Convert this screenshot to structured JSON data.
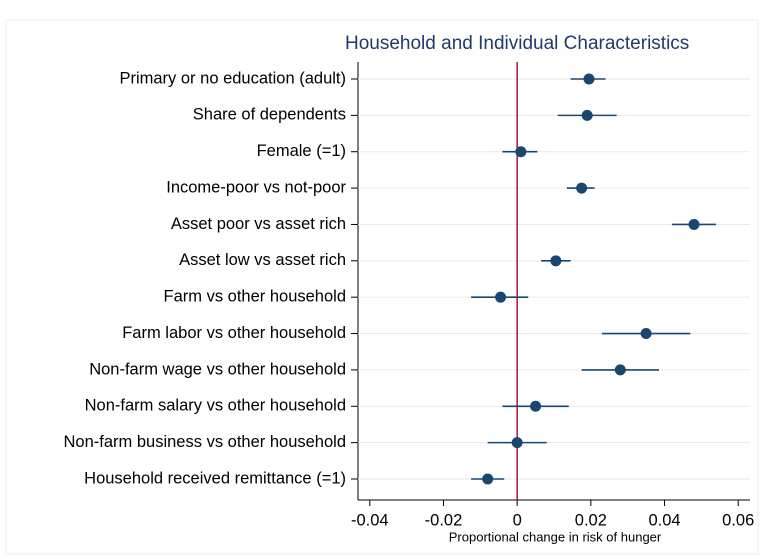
{
  "chart_data": {
    "type": "coefplot",
    "title": "Household and Individual Characteristics",
    "x_label": "Proportional change in risk of hunger",
    "categories": [
      "Primary or no education (adult)",
      "Share of dependents",
      "Female (=1)",
      "Income-poor vs not-poor",
      "Asset poor vs asset rich",
      "Asset low vs asset rich",
      "Farm vs other household",
      "Farm labor vs other household",
      "Non-farm wage vs other household",
      "Non-farm salary vs other household",
      "Non-farm business vs other household",
      "Household received remittance (=1)"
    ],
    "values": [
      0.0195,
      0.019,
      0.001,
      0.0175,
      0.048,
      0.0105,
      -0.0045,
      0.035,
      0.028,
      0.005,
      0.0,
      -0.008
    ],
    "lower": [
      0.0145,
      0.011,
      -0.004,
      0.0135,
      0.042,
      0.0065,
      -0.0125,
      0.023,
      0.0175,
      -0.004,
      -0.008,
      -0.0125
    ],
    "upper": [
      0.024,
      0.027,
      0.0055,
      0.021,
      0.054,
      0.0145,
      0.003,
      0.047,
      0.0385,
      0.014,
      0.008,
      -0.0035
    ],
    "color": "#1a476f",
    "reference_line": 0,
    "reference_color": "#b0123a",
    "xlim": [
      -0.0432,
      0.0632
    ],
    "xticks": [
      -0.04,
      -0.02,
      0,
      0.02,
      0.04,
      0.06
    ],
    "grid": true
  }
}
